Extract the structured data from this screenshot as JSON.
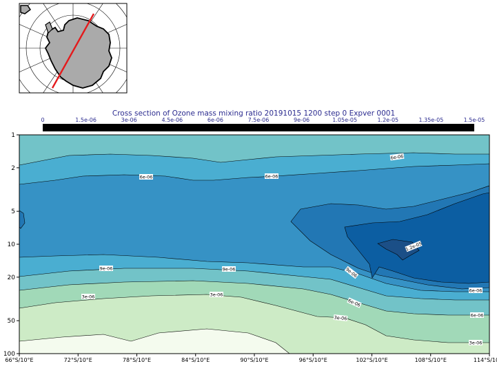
{
  "chart_data": {
    "type": "contour",
    "title": "Cross section of Ozone mass mixing ratio 20191015 1200 step 0 Expver 0001",
    "colorbar": {
      "ticks": [
        "0",
        "1.5e-06",
        "3e-06",
        "4.5e-06",
        "6e-06",
        "7.5e-06",
        "9e-06",
        "1.05e-05",
        "1.2e-05",
        "1.35e-05",
        "1.5e-05"
      ],
      "range": [
        0,
        1.5e-05
      ]
    },
    "x_axis": {
      "ticks": [
        "66°S/10°E",
        "72°S/10°E",
        "78°S/10°E",
        "84°S/10°E",
        "90°S/10°E",
        "96°S/10°E",
        "102°S/10°E",
        "108°S/10°E",
        "114°S/10°E"
      ]
    },
    "y_axis": {
      "scale": "log",
      "reversed": true,
      "ticks": [
        1,
        2,
        5,
        10,
        20,
        50,
        100
      ],
      "range": [
        1,
        100
      ]
    },
    "contour_labels": [
      "6e-06",
      "6e-06",
      "6e-06",
      "9e-06",
      "9e-06",
      "1.2e-05",
      "9e-06",
      "6e-06",
      "6e-06",
      "3e-06",
      "3e-06",
      "3e-06",
      "3e-06",
      "6e-06",
      "3e-06"
    ],
    "levels": [
      0,
      1.5e-06,
      3e-06,
      4.5e-06,
      6e-06,
      7.5e-06,
      9e-06,
      1.05e-05,
      1.2e-05
    ],
    "colors": {
      "band_0": "#f4fbee",
      "band_1": "#cdebc6",
      "band_2": "#a1d9b8",
      "band_3": "#72c3c8",
      "band_4": "#4aaed1",
      "band_5": "#3692c5",
      "band_6": "#2277b4",
      "band_7": "#0c5ea2",
      "section_line": "#e41a1c",
      "land": "#aaaaaa",
      "title": "#2b2b8f"
    }
  }
}
